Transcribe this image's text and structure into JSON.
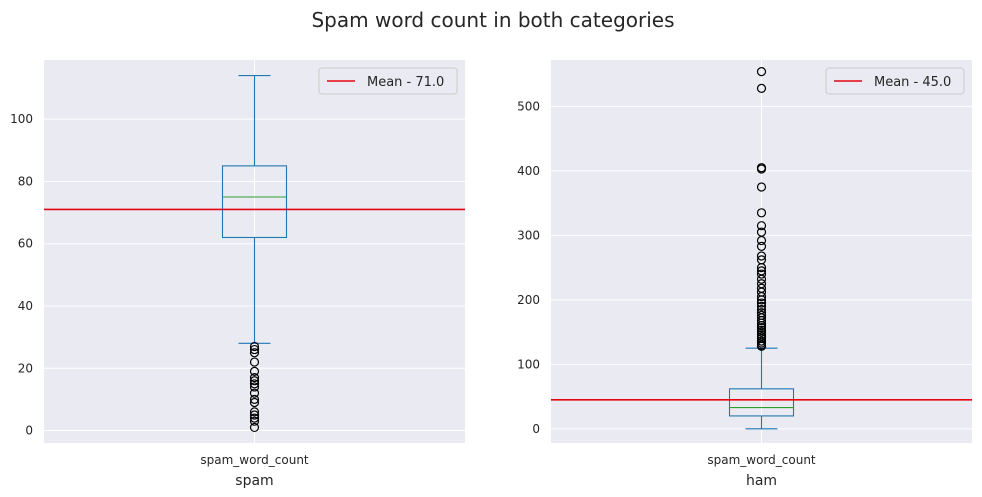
{
  "colors": {
    "figure_bg": "#ffffff",
    "axes_bg": "#eaeaf2",
    "grid": "#ffffff",
    "box": "#1f77b4",
    "median": "#2ca02c",
    "mean_line": "#e30613",
    "flier_edge": "#000000"
  },
  "chart_data": [
    {
      "type": "box",
      "suptitle": "Spam word count in both categories",
      "title": "",
      "xlabel": "spam",
      "ylabel": "",
      "categories": [
        "spam_word_count"
      ],
      "ylim": [
        -4,
        119
      ],
      "yticks": [
        0,
        20,
        40,
        60,
        80,
        100
      ],
      "grid": true,
      "box": {
        "whisker_low": 28,
        "q1": 62,
        "median": 75,
        "q3": 85,
        "whisker_high": 114
      },
      "fliers": [
        1,
        3,
        4,
        5,
        6,
        9,
        10,
        12,
        14,
        15,
        16,
        17,
        19,
        22,
        25,
        26,
        27
      ],
      "mean": {
        "value": 71.0,
        "label": "Mean - 71.0"
      },
      "legend": {
        "position": "upper right",
        "entries": [
          "Mean - 71.0"
        ]
      }
    },
    {
      "type": "box",
      "title": "",
      "xlabel": "ham",
      "ylabel": "",
      "categories": [
        "spam_word_count"
      ],
      "ylim": [
        -22,
        572
      ],
      "yticks": [
        0,
        100,
        200,
        300,
        400,
        500
      ],
      "grid": true,
      "box": {
        "whisker_low": 0,
        "q1": 20,
        "median": 33,
        "q3": 62,
        "whisker_high": 125
      },
      "fliers": [
        128,
        130,
        133,
        136,
        140,
        143,
        146,
        150,
        153,
        157,
        160,
        164,
        168,
        172,
        176,
        180,
        185,
        190,
        195,
        200,
        205,
        212,
        218,
        225,
        232,
        240,
        245,
        250,
        262,
        268,
        283,
        292,
        305,
        315,
        335,
        375,
        403,
        405,
        528,
        554
      ],
      "mean": {
        "value": 45.0,
        "label": "Mean - 45.0"
      },
      "legend": {
        "position": "upper right",
        "entries": [
          "Mean - 45.0"
        ]
      }
    }
  ]
}
